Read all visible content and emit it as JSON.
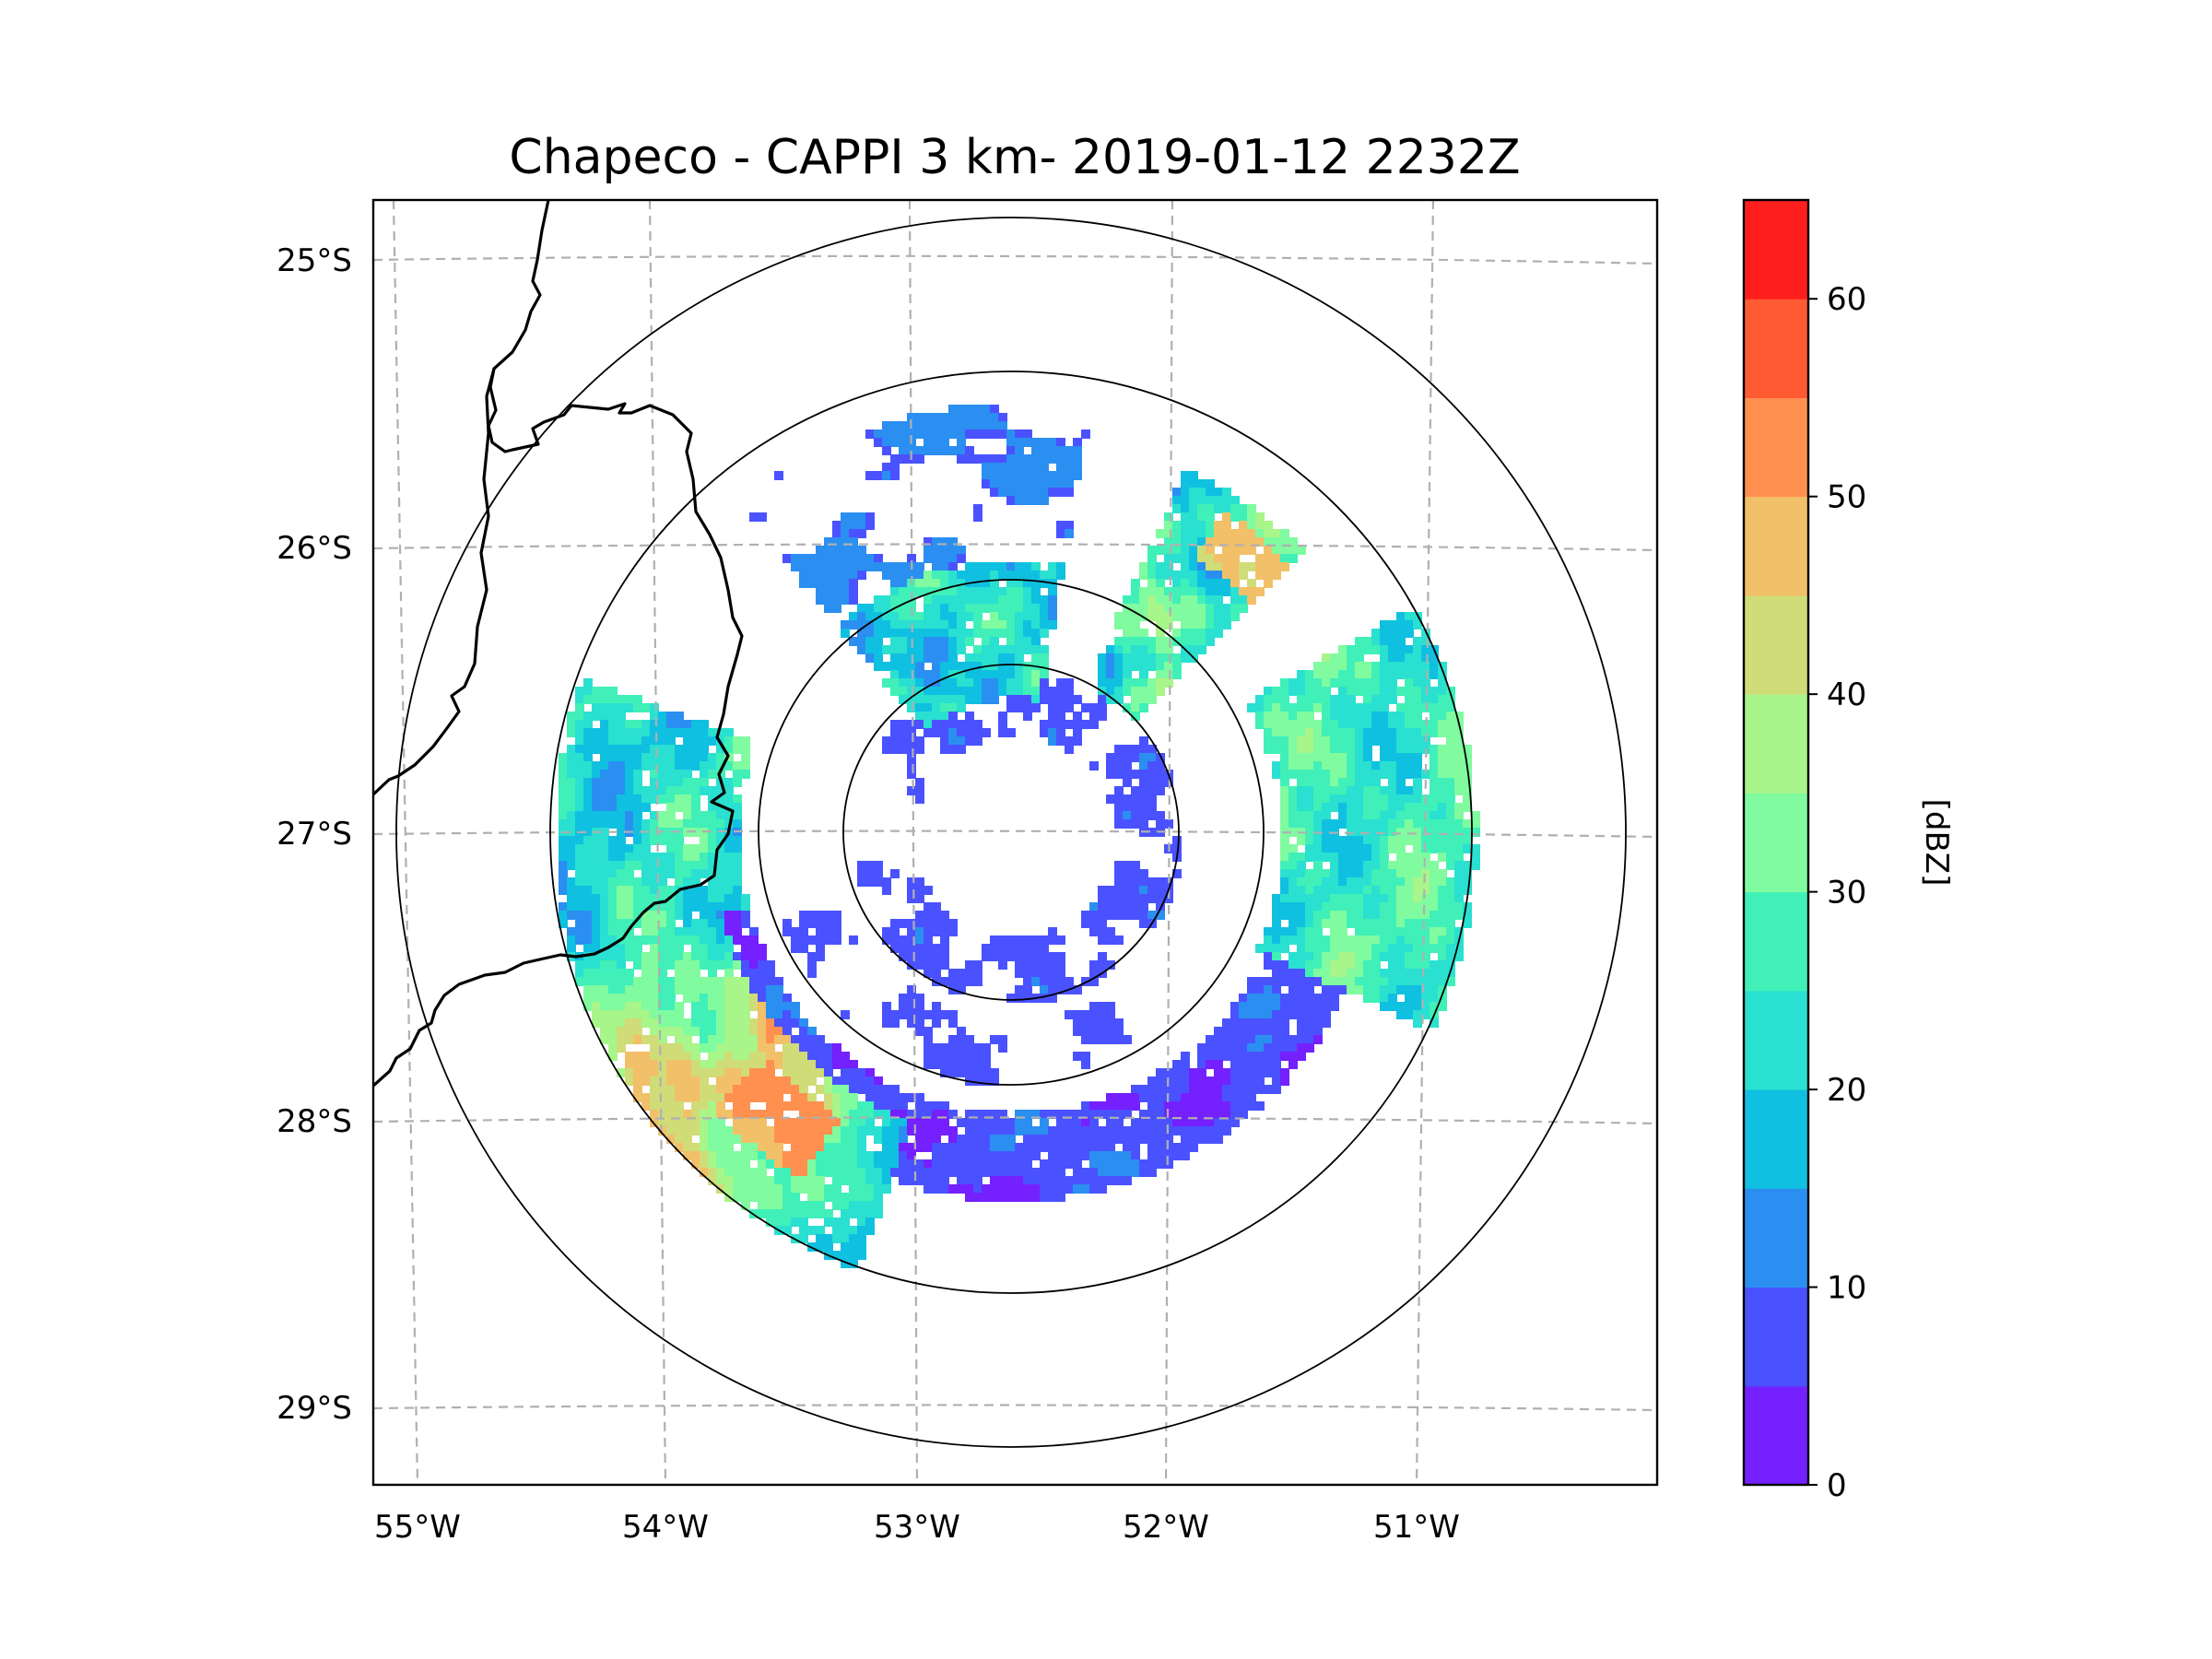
{
  "figure": {
    "title": "Chapeco - CAPPI 3 km- 2019-01-12 2232Z"
  },
  "axes": {
    "lon_labels": [
      "55°W",
      "54°W",
      "53°W",
      "52°W",
      "51°W"
    ],
    "lat_labels": [
      "25°S",
      "26°S",
      "27°S",
      "28°S",
      "29°S"
    ]
  },
  "colorbar": {
    "label": "[dBZ]",
    "tick_labels": [
      "0",
      "10",
      "20",
      "30",
      "40",
      "50",
      "60"
    ],
    "levels": [
      0,
      5,
      10,
      15,
      20,
      25,
      30,
      35,
      40,
      45,
      50,
      55,
      60,
      65
    ],
    "colors": [
      "#7420ff",
      "#4a52ff",
      "#2a8ff0",
      "#10c0e0",
      "#2ae0d0",
      "#40f0b8",
      "#80fba0",
      "#a8f58a",
      "#d0dc78",
      "#f2c068",
      "#ff9050",
      "#ff5a32",
      "#ff1e1e"
    ]
  },
  "chart_data": {
    "type": "radar_ppi_map",
    "product": "CAPPI 3 km",
    "site": "Chapeco",
    "timestamp": "2019-01-12 2232Z",
    "lon_range": [
      -55.2,
      -50.05
    ],
    "lat_range": [
      -29.28,
      -24.78
    ],
    "radar_center": {
      "lon": -52.6,
      "lat": -27.05
    },
    "range_rings_deg": [
      0.4,
      0.7,
      1.45,
      2.05
    ],
    "grid": true,
    "colorbar_units": "dBZ",
    "echo_regions": [
      {
        "area": "south-west band",
        "dbz_min": 15,
        "dbz_max": 55
      },
      {
        "area": "east sector",
        "dbz_min": 15,
        "dbz_max": 35
      },
      {
        "area": "north-east strip",
        "dbz_min": 15,
        "dbz_max": 45
      },
      {
        "area": "southern ring",
        "dbz_min": 0,
        "dbz_max": 15
      },
      {
        "area": "northern central",
        "dbz_min": 10,
        "dbz_max": 35
      }
    ]
  }
}
